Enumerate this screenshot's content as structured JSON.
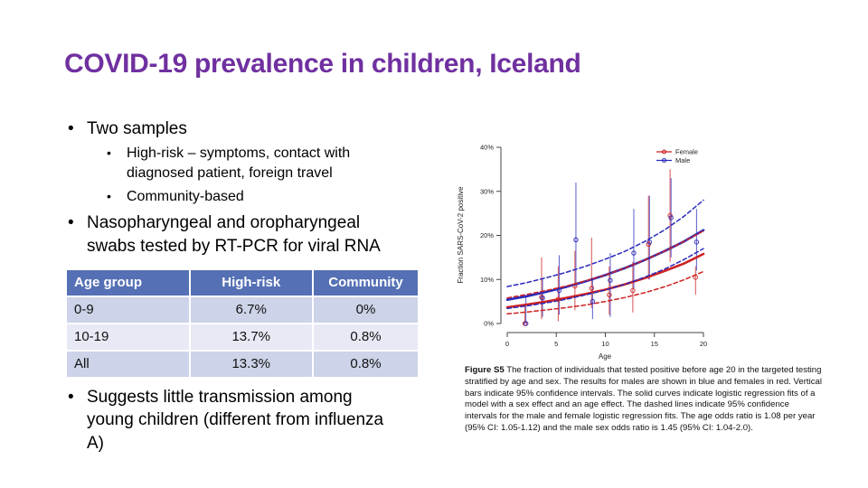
{
  "slide": {
    "title": "COVID-19 prevalence in children, Iceland",
    "accent_color": "#7030A0"
  },
  "bullets": {
    "two_samples": "Two samples",
    "high_risk": "High-risk – symptoms, contact with diagnosed patient, foreign travel",
    "community": "Community-based",
    "swabs": "Nasopharyngeal and oropharyngeal swabs tested by RT-PCR for viral RNA",
    "conclusion": "Suggests little transmission among young children (different from influenza A)"
  },
  "table": {
    "header_bg": "#5570B4",
    "row_bg_odd": "#CDD3E8",
    "row_bg_even": "#E7EAF4",
    "headers": [
      "Age group",
      "High-risk",
      "Community"
    ],
    "rows": [
      [
        "0-9",
        "6.7%",
        "0%"
      ],
      [
        "10-19",
        "13.7%",
        "0.8%"
      ],
      [
        "All",
        "13.3%",
        "0.8%"
      ]
    ]
  },
  "figure": {
    "caption_label": "Figure S5",
    "caption_text": " The fraction of individuals that tested positive before age 20 in the targeted testing stratified by age and sex. The results for males are shown in blue and females in red. Vertical bars indicate 95% confidence intervals. The solid curves indicate logistic regression fits of a model with a sex effect and an age effect. The dashed lines indicate 95% confidence intervals for the male and female logistic regression fits. The age odds ratio is 1.08 per year (95% CI: 1.05-1.12) and the male sex odds ratio is 1.45 (95% CI: 1.04-2.0)."
  },
  "chart_data": {
    "type": "scatter",
    "title": "",
    "xlabel": "Age",
    "ylabel": "Fraction SARS-CoV-2 positive",
    "xlim": [
      0,
      20
    ],
    "ylim": [
      0,
      40
    ],
    "x_ticks": [
      0,
      5,
      10,
      15,
      20
    ],
    "y_ticks": [
      0,
      10,
      20,
      30,
      40
    ],
    "y_tick_labels": [
      "0%",
      "10%",
      "20%",
      "30%",
      "40%"
    ],
    "grid": false,
    "legend_position": "top-right",
    "legend": [
      {
        "label": "Female",
        "color": "#CC2222"
      },
      {
        "label": "Male",
        "color": "#2A2ABB"
      }
    ],
    "curve_ages": [
      0,
      2,
      4,
      6,
      8,
      10,
      12,
      14,
      16,
      18,
      20
    ],
    "curves": [
      {
        "name": "female-fit",
        "style": "solid",
        "color": "#CC2222",
        "values": [
          3.7,
          4.3,
          5.0,
          5.8,
          6.7,
          7.7,
          8.9,
          10.3,
          11.9,
          13.6,
          15.8
        ]
      },
      {
        "name": "male-fit",
        "style": "solid",
        "color": "#2A2ABB",
        "values": [
          5.4,
          6.2,
          7.2,
          8.3,
          9.6,
          11.0,
          12.6,
          14.4,
          16.4,
          18.6,
          21.2
        ]
      },
      {
        "name": "female-ci-upper",
        "style": "dashed",
        "color": "#CC2222",
        "values": [
          5.8,
          6.6,
          7.5,
          8.5,
          9.7,
          11.0,
          12.6,
          14.4,
          16.4,
          18.6,
          21.0
        ]
      },
      {
        "name": "female-ci-lower",
        "style": "dashed",
        "color": "#CC2222",
        "values": [
          2.2,
          2.6,
          3.1,
          3.6,
          4.2,
          5.0,
          5.9,
          7.0,
          8.3,
          9.9,
          11.8
        ]
      },
      {
        "name": "male-ci-upper",
        "style": "dashed",
        "color": "#2A2ABB",
        "values": [
          8.4,
          9.3,
          10.4,
          11.6,
          13.0,
          14.6,
          16.4,
          18.6,
          21.2,
          24.3,
          28.0
        ]
      },
      {
        "name": "male-ci-lower",
        "style": "dashed",
        "color": "#2A2ABB",
        "values": [
          3.4,
          4.0,
          4.7,
          5.5,
          6.5,
          7.6,
          8.9,
          10.5,
          12.3,
          14.5,
          17.0
        ]
      }
    ],
    "points": [
      {
        "name": "Female",
        "color": "#CC2222",
        "data": [
          {
            "age": 1.8,
            "value": 0,
            "lo": 0,
            "hi": 4
          },
          {
            "age": 3.5,
            "value": 6,
            "lo": 1,
            "hi": 15
          },
          {
            "age": 5.2,
            "value": 5.5,
            "lo": 0.5,
            "hi": 13
          },
          {
            "age": 6.9,
            "value": 8.5,
            "lo": 3,
            "hi": 16.5
          },
          {
            "age": 8.6,
            "value": 8,
            "lo": 3.5,
            "hi": 19.5
          },
          {
            "age": 10.4,
            "value": 6.5,
            "lo": 2,
            "hi": 13
          },
          {
            "age": 12.8,
            "value": 7.5,
            "lo": 2.5,
            "hi": 14
          },
          {
            "age": 14.4,
            "value": 18,
            "lo": 10,
            "hi": 29
          },
          {
            "age": 16.6,
            "value": 24.5,
            "lo": 14,
            "hi": 35
          },
          {
            "age": 19.2,
            "value": 10.5,
            "lo": 6.5,
            "hi": 13
          }
        ]
      },
      {
        "name": "Male",
        "color": "#2A2ABB",
        "data": [
          {
            "age": 1.9,
            "value": 0,
            "lo": 0,
            "hi": 6
          },
          {
            "age": 3.6,
            "value": 5.8,
            "lo": 1.5,
            "hi": 10
          },
          {
            "age": 5.3,
            "value": 7.5,
            "lo": 2,
            "hi": 15.5
          },
          {
            "age": 7.0,
            "value": 19,
            "lo": 8.5,
            "hi": 32
          },
          {
            "age": 8.7,
            "value": 5,
            "lo": 1,
            "hi": 10
          },
          {
            "age": 10.5,
            "value": 9.8,
            "lo": 1.5,
            "hi": 16
          },
          {
            "age": 12.9,
            "value": 16,
            "lo": 8,
            "hi": 26
          },
          {
            "age": 14.5,
            "value": 18.5,
            "lo": 10,
            "hi": 29
          },
          {
            "age": 16.7,
            "value": 24,
            "lo": 15,
            "hi": 33
          },
          {
            "age": 19.3,
            "value": 18.5,
            "lo": 12,
            "hi": 26
          }
        ]
      }
    ]
  }
}
